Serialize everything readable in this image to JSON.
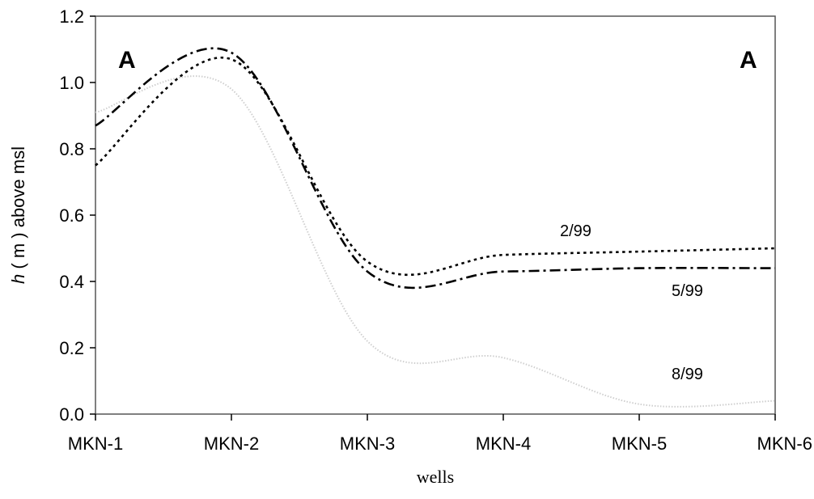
{
  "chart_data": {
    "type": "line",
    "title": "",
    "xlabel": "wells",
    "ylabel": "h ( m ) above msl",
    "ylabel_italic": "h",
    "ylabel_rest": " ( m ) above msl",
    "categories": [
      "MKN-1",
      "MKN-2",
      "MKN-3",
      "MKN-4",
      "MKN-5",
      "MKN-6"
    ],
    "ylim": [
      0,
      1.2
    ],
    "yticks": [
      "0.0",
      "0.2",
      "0.4",
      "0.6",
      "0.8",
      "1.0",
      "1.2"
    ],
    "grid": false,
    "legend": "none",
    "annotations": {
      "left_letter": "A",
      "right_letter": "A"
    },
    "series": [
      {
        "name": "2/99",
        "style": "dotted",
        "color": "#000000",
        "values": [
          0.75,
          1.07,
          0.46,
          0.48,
          0.49,
          0.5
        ]
      },
      {
        "name": "5/99",
        "style": "dash-dot",
        "color": "#000000",
        "values": [
          0.87,
          1.09,
          0.43,
          0.43,
          0.44,
          0.44
        ]
      },
      {
        "name": "8/99",
        "style": "faint",
        "color": "#cfcfcf",
        "values": [
          0.91,
          0.98,
          0.22,
          0.17,
          0.03,
          0.04
        ]
      }
    ]
  }
}
